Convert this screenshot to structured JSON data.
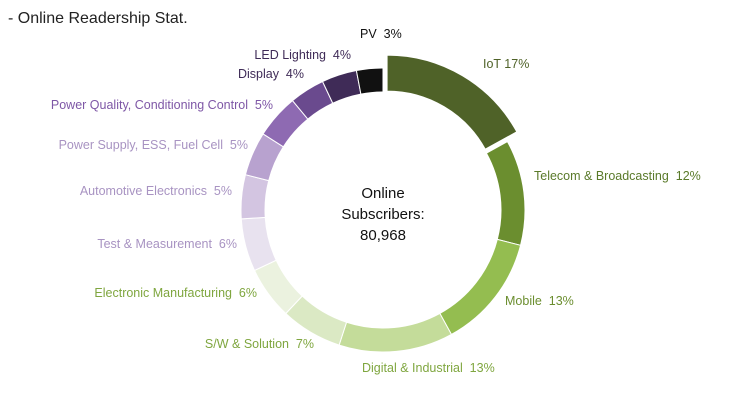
{
  "page": {
    "title": "- Online Readership Stat."
  },
  "chart_data": {
    "type": "pie",
    "variant": "donut",
    "center_label": [
      "Online",
      "Subscribers:",
      "80,968"
    ],
    "slices": [
      {
        "label": "IoT",
        "value": 17,
        "display": "IoT 17%",
        "color": "#4f6228",
        "exploded": true
      },
      {
        "label": "Telecom & Broadcasting",
        "value": 12,
        "display": "Telecom & Broadcasting  12%",
        "color": "#6b8e2f"
      },
      {
        "label": "Mobile",
        "value": 13,
        "display": "Mobile  13%",
        "color": "#94bd50"
      },
      {
        "label": "Digital & Industrial",
        "value": 13,
        "display": "Digital & Industrial  13%",
        "color": "#c4dc9a"
      },
      {
        "label": "S/W & Solution",
        "value": 7,
        "display": "S/W & Solution  7%",
        "color": "#dbe9c4"
      },
      {
        "label": "Electronic Manufacturing",
        "value": 6,
        "display": "Electronic Manufacturing  6%",
        "color": "#ebf2df"
      },
      {
        "label": "Test & Measurement",
        "value": 6,
        "display": "Test & Measurement  6%",
        "color": "#e8e2ef"
      },
      {
        "label": "Automotive Electronics",
        "value": 5,
        "display": "Automotive Electronics  5%",
        "color": "#d3c5e1"
      },
      {
        "label": "Power Supply, ESS, Fuel Cell",
        "value": 5,
        "display": "Power Supply, ESS, Fuel Cell  5%",
        "color": "#b8a2cf"
      },
      {
        "label": "Power Quality, Conditioning Control",
        "value": 5,
        "display": "Power Quality, Conditioning Control  5%",
        "color": "#8e6ab2"
      },
      {
        "label": "Display",
        "value": 4,
        "display": "Display  4%",
        "color": "#6a4a8e"
      },
      {
        "label": "LED Lighting",
        "value": 4,
        "display": "LED Lighting  4%",
        "color": "#3f2b57"
      },
      {
        "label": "PV",
        "value": 3,
        "display": "PV  3%",
        "color": "#111111"
      }
    ]
  }
}
